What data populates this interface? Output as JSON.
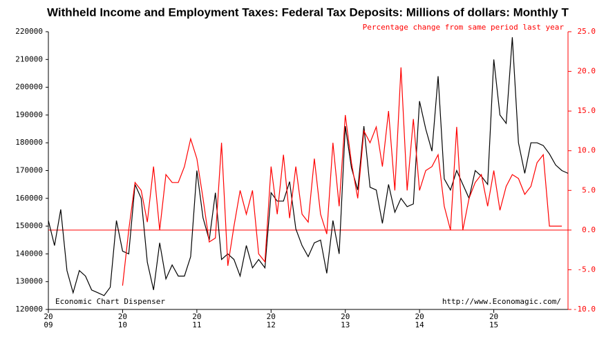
{
  "chart_data": {
    "type": "line",
    "title": "Withheld Income and Employment Taxes: Federal Tax Deposits: Millions of dollars: Monthly T",
    "subtitle": "Percentage change from same period last year",
    "annotations": [
      "Economic Chart Dispenser",
      "http://www.Economagic.com/"
    ],
    "x": [
      2009,
      2009.083,
      2009.167,
      2009.25,
      2009.333,
      2009.417,
      2009.5,
      2009.583,
      2009.667,
      2009.75,
      2009.833,
      2009.917,
      2010,
      2010.083,
      2010.167,
      2010.25,
      2010.333,
      2010.417,
      2010.5,
      2010.583,
      2010.667,
      2010.75,
      2010.833,
      2010.917,
      2011,
      2011.083,
      2011.167,
      2011.25,
      2011.333,
      2011.417,
      2011.5,
      2011.583,
      2011.667,
      2011.75,
      2011.833,
      2011.917,
      2012,
      2012.083,
      2012.167,
      2012.25,
      2012.333,
      2012.417,
      2012.5,
      2012.583,
      2012.667,
      2012.75,
      2012.833,
      2012.917,
      2013,
      2013.083,
      2013.167,
      2013.25,
      2013.333,
      2013.417,
      2013.5,
      2013.583,
      2013.667,
      2013.75,
      2013.833,
      2013.917,
      2014,
      2014.083,
      2014.167,
      2014.25,
      2014.333,
      2014.417,
      2014.5,
      2014.583,
      2014.667,
      2014.75,
      2014.833,
      2014.917,
      2015,
      2015.083,
      2015.167,
      2015.25,
      2015.333,
      2015.417,
      2015.5,
      2015.583,
      2015.667,
      2015.75,
      2015.833,
      2015.917,
      2016
    ],
    "series": [
      {
        "color": "#000000",
        "values": [
          152000,
          143000,
          156000,
          134000,
          126000,
          134000,
          132000,
          127000,
          126000,
          125000,
          128000,
          152000,
          141000,
          140000,
          165000,
          160000,
          137000,
          127000,
          144000,
          131000,
          136000,
          132000,
          132000,
          139000,
          170000,
          153000,
          145000,
          162000,
          138000,
          140000,
          138000,
          132000,
          143000,
          135000,
          138000,
          135000,
          162000,
          159000,
          159000,
          166000,
          149000,
          143000,
          139000,
          144000,
          145000,
          133000,
          152000,
          140000,
          186000,
          171000,
          163000,
          186000,
          164000,
          163000,
          151000,
          165000,
          155000,
          160000,
          157000,
          158000,
          195000,
          185000,
          177000,
          204000,
          167000,
          163000,
          170000,
          165000,
          160000,
          170000,
          168000,
          165000,
          210000,
          190000,
          187000,
          218000,
          180000,
          169000,
          180000,
          180000,
          179000,
          176000,
          172000,
          170000,
          169000
        ]
      },
      {
        "color": "#ff0000",
        "axis": "y2",
        "values": [
          null,
          null,
          null,
          null,
          null,
          null,
          null,
          null,
          null,
          null,
          null,
          null,
          -7,
          0,
          6,
          5,
          1,
          8,
          0,
          7,
          6,
          6,
          8,
          11.5,
          9,
          4,
          -1.5,
          -1,
          11,
          -4.5,
          0.5,
          5,
          2,
          5,
          -3,
          -4,
          8,
          2,
          9.5,
          1.5,
          8,
          2,
          1,
          9,
          2,
          -0.5,
          11,
          3,
          14.5,
          8.5,
          4,
          12.5,
          11,
          13,
          8,
          15,
          5,
          20.5,
          5,
          14,
          5,
          7.5,
          8,
          9.5,
          3,
          0,
          13,
          0,
          4,
          6,
          7,
          3,
          7.5,
          2.5,
          5.5,
          7,
          6.5,
          4.5,
          5.5,
          8.5,
          9.5,
          0.5,
          0.5,
          0.5,
          null
        ]
      }
    ],
    "xlim": [
      2009,
      2016
    ],
    "xticks": [
      {
        "value": 2009,
        "label": [
          "20",
          "09"
        ]
      },
      {
        "value": 2010,
        "label": [
          "20",
          "10"
        ]
      },
      {
        "value": 2011,
        "label": [
          "20",
          "11"
        ]
      },
      {
        "value": 2012,
        "label": [
          "20",
          "12"
        ]
      },
      {
        "value": 2013,
        "label": [
          "20",
          "13"
        ]
      },
      {
        "value": 2014,
        "label": [
          "20",
          "14"
        ]
      },
      {
        "value": 2015,
        "label": [
          "20",
          "15"
        ]
      }
    ],
    "ylim": [
      120000,
      220000
    ],
    "yticks": [
      120000,
      130000,
      140000,
      150000,
      160000,
      170000,
      180000,
      190000,
      200000,
      210000,
      220000
    ],
    "y2lim": [
      -10,
      25
    ],
    "y2ticks": [
      {
        "value": -10,
        "label": "-10.0"
      },
      {
        "value": -5,
        "label": "-5.0"
      },
      {
        "value": 0,
        "label": "0.0"
      },
      {
        "value": 5,
        "label": "5.0"
      },
      {
        "value": 10,
        "label": "10.0"
      },
      {
        "value": 15,
        "label": "15.0"
      },
      {
        "value": 20,
        "label": "20.0"
      },
      {
        "value": 25,
        "label": "25.0"
      }
    ],
    "y2_reference_line": 0,
    "y2_color": "#ff0000"
  }
}
